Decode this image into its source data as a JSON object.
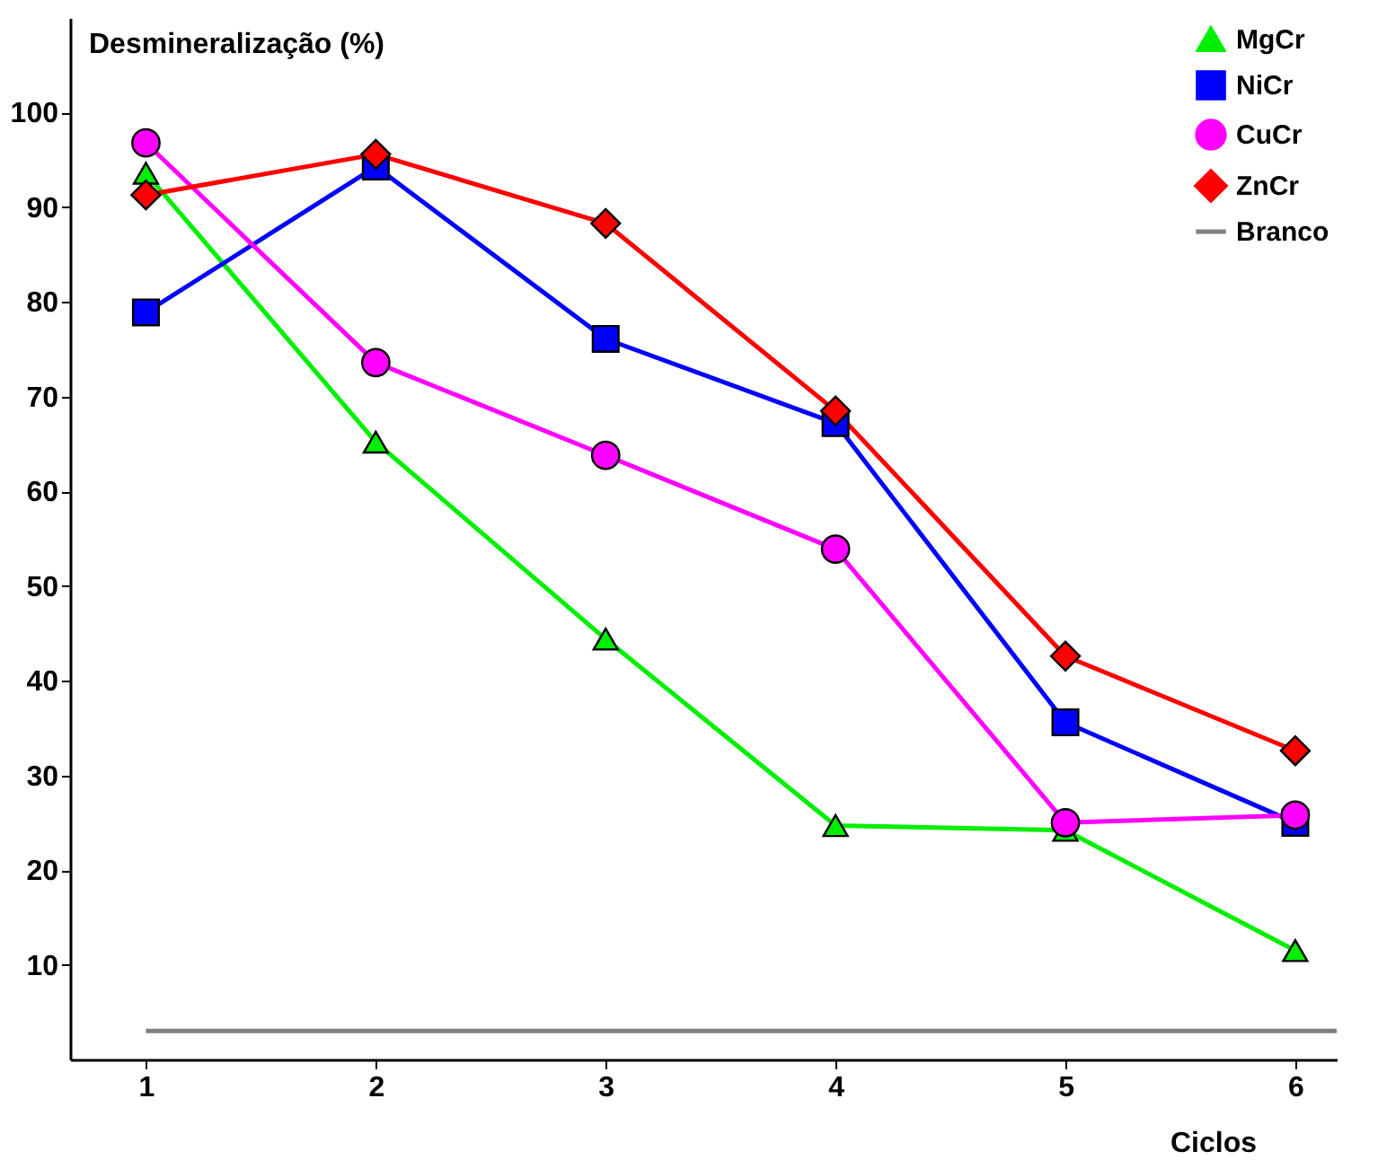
{
  "chart_data": {
    "type": "line",
    "xlabel": "Ciclos",
    "ylabel": "Desmineralização (%)",
    "x": [
      1,
      2,
      3,
      4,
      5,
      6
    ],
    "series": [
      {
        "name": "MgCr",
        "color": "#00ee00",
        "marker": "triangle",
        "values": [
          93.6,
          65.2,
          44.4,
          24.7,
          24.2,
          11.5
        ]
      },
      {
        "name": "NiCr",
        "color": "#0000ff",
        "marker": "square",
        "values": [
          78.9,
          94.3,
          76.1,
          67.2,
          35.6,
          25
        ]
      },
      {
        "name": "CuCr",
        "color": "#ff00ff",
        "marker": "circle",
        "values": [
          96.8,
          73.6,
          63.8,
          53.9,
          25,
          25.8
        ]
      },
      {
        "name": "ZnCr",
        "color": "#ff0000",
        "marker": "diamond",
        "values": [
          91.3,
          95.6,
          88.3,
          68.5,
          42.6,
          32.6
        ]
      },
      {
        "name": "Branco",
        "color": "#808080",
        "marker": "none",
        "x": [
          1,
          6.18
        ],
        "values": [
          3,
          3
        ]
      }
    ],
    "xlim": [
      0.67,
      6.18
    ],
    "xticks": [
      1,
      2,
      3,
      4,
      5,
      6
    ],
    "ylim": [
      0,
      110
    ],
    "yticks": [
      10,
      20,
      30,
      40,
      50,
      60,
      70,
      80,
      90,
      100
    ],
    "grid": false,
    "legend": "top right",
    "line_style": "solid"
  }
}
